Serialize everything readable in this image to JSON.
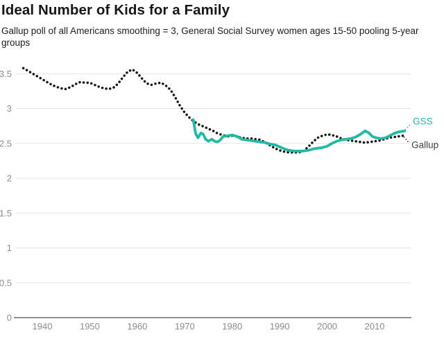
{
  "header": {
    "title": "Ideal Number of Kids for a Family",
    "subtitle": "Gallup poll of all Americans smoothing = 3, General Social Survey women ages 15-50 pooling 5-year groups"
  },
  "colors": {
    "background": "#ffffff",
    "grid": "#e4e4e4",
    "axis": "#6b6b6b",
    "tick_label": "#8c8c8c",
    "title": "#161616",
    "gss": "#1fb9a4",
    "gallup": "#161616",
    "gallup_label": "#3f3f3f"
  },
  "chart_data": {
    "type": "line",
    "title": "Ideal Number of Kids for a Family",
    "subtitle": "Gallup poll of all Americans smoothing = 3, General Social Survey women ages 15-50 pooling 5-year groups",
    "xlabel": "",
    "ylabel": "",
    "x_ticks": [
      "1940",
      "1950",
      "1960",
      "1970",
      "1980",
      "1990",
      "2000",
      "2010"
    ],
    "y_ticks": [
      "0",
      "0.5",
      "1",
      "1.5",
      "2",
      "2.5",
      "3",
      "3.5"
    ],
    "x_range": [
      1934.5,
      2017.5
    ],
    "y_range": [
      0,
      3.5
    ],
    "grid": "horizontal-only",
    "legend": "inline-end-labels",
    "series": [
      {
        "name": "Gallup",
        "label": "Gallup",
        "style": "dotted",
        "color": "#161616",
        "label_color": "#3f3f3f",
        "points": [
          [
            1936,
            3.58
          ],
          [
            1937,
            3.54
          ],
          [
            1938,
            3.5
          ],
          [
            1939,
            3.46
          ],
          [
            1940,
            3.42
          ],
          [
            1941,
            3.38
          ],
          [
            1942,
            3.34
          ],
          [
            1943,
            3.31
          ],
          [
            1944,
            3.29
          ],
          [
            1945,
            3.28
          ],
          [
            1946,
            3.31
          ],
          [
            1947,
            3.35
          ],
          [
            1948,
            3.38
          ],
          [
            1949,
            3.37
          ],
          [
            1950,
            3.37
          ],
          [
            1951,
            3.34
          ],
          [
            1952,
            3.31
          ],
          [
            1953,
            3.29
          ],
          [
            1954,
            3.28
          ],
          [
            1955,
            3.3
          ],
          [
            1956,
            3.36
          ],
          [
            1957,
            3.45
          ],
          [
            1958,
            3.53
          ],
          [
            1959,
            3.56
          ],
          [
            1960,
            3.51
          ],
          [
            1961,
            3.43
          ],
          [
            1962,
            3.36
          ],
          [
            1963,
            3.34
          ],
          [
            1964,
            3.36
          ],
          [
            1965,
            3.37
          ],
          [
            1966,
            3.33
          ],
          [
            1967,
            3.27
          ],
          [
            1968,
            3.16
          ],
          [
            1969,
            3.04
          ],
          [
            1970,
            2.94
          ],
          [
            1971,
            2.87
          ],
          [
            1972,
            2.81
          ],
          [
            1973,
            2.77
          ],
          [
            1974,
            2.74
          ],
          [
            1975,
            2.71
          ],
          [
            1976,
            2.68
          ],
          [
            1977,
            2.64
          ],
          [
            1978,
            2.62
          ],
          [
            1979,
            2.6
          ],
          [
            1980,
            2.61
          ],
          [
            1981,
            2.6
          ],
          [
            1982,
            2.58
          ],
          [
            1983,
            2.57
          ],
          [
            1984,
            2.57
          ],
          [
            1985,
            2.56
          ],
          [
            1986,
            2.55
          ],
          [
            1987,
            2.51
          ],
          [
            1988,
            2.47
          ],
          [
            1989,
            2.43
          ],
          [
            1990,
            2.4
          ],
          [
            1991,
            2.38
          ],
          [
            1992,
            2.37
          ],
          [
            1993,
            2.37
          ],
          [
            1994,
            2.37
          ],
          [
            1995,
            2.39
          ],
          [
            1996,
            2.45
          ],
          [
            1997,
            2.52
          ],
          [
            1998,
            2.58
          ],
          [
            1999,
            2.61
          ],
          [
            2000,
            2.63
          ],
          [
            2001,
            2.62
          ],
          [
            2002,
            2.6
          ],
          [
            2003,
            2.57
          ],
          [
            2004,
            2.55
          ],
          [
            2005,
            2.54
          ],
          [
            2006,
            2.53
          ],
          [
            2007,
            2.52
          ],
          [
            2008,
            2.51
          ],
          [
            2009,
            2.52
          ],
          [
            2010,
            2.53
          ],
          [
            2011,
            2.54
          ],
          [
            2012,
            2.56
          ],
          [
            2013,
            2.58
          ],
          [
            2014,
            2.59
          ],
          [
            2015,
            2.6
          ],
          [
            2016,
            2.61
          ]
        ]
      },
      {
        "name": "GSS",
        "label": "GSS",
        "style": "solid",
        "color": "#1fb9a4",
        "label_color": "#1fb9a4",
        "points": [
          [
            1971.8,
            2.84
          ],
          [
            1972.3,
            2.64
          ],
          [
            1972.8,
            2.58
          ],
          [
            1973.4,
            2.65
          ],
          [
            1973.9,
            2.63
          ],
          [
            1974.4,
            2.56
          ],
          [
            1975.0,
            2.53
          ],
          [
            1975.7,
            2.56
          ],
          [
            1976.3,
            2.53
          ],
          [
            1976.9,
            2.52
          ],
          [
            1977.5,
            2.55
          ],
          [
            1978.1,
            2.6
          ],
          [
            1979,
            2.61
          ],
          [
            1980,
            2.62
          ],
          [
            1981,
            2.6
          ],
          [
            1982,
            2.56
          ],
          [
            1983,
            2.55
          ],
          [
            1984,
            2.54
          ],
          [
            1985,
            2.53
          ],
          [
            1986,
            2.52
          ],
          [
            1987,
            2.51
          ],
          [
            1988,
            2.49
          ],
          [
            1989,
            2.48
          ],
          [
            1990,
            2.45
          ],
          [
            1991,
            2.42
          ],
          [
            1992,
            2.4
          ],
          [
            1993,
            2.39
          ],
          [
            1994,
            2.39
          ],
          [
            1995,
            2.39
          ],
          [
            1996,
            2.4
          ],
          [
            1997,
            2.42
          ],
          [
            1998,
            2.43
          ],
          [
            1999,
            2.44
          ],
          [
            2000,
            2.46
          ],
          [
            2001,
            2.5
          ],
          [
            2002,
            2.53
          ],
          [
            2003,
            2.55
          ],
          [
            2004,
            2.56
          ],
          [
            2005,
            2.57
          ],
          [
            2006,
            2.59
          ],
          [
            2007,
            2.63
          ],
          [
            2008,
            2.68
          ],
          [
            2008.8,
            2.65
          ],
          [
            2009.5,
            2.6
          ],
          [
            2010.3,
            2.58
          ],
          [
            2011.3,
            2.57
          ],
          [
            2012.3,
            2.58
          ],
          [
            2013.2,
            2.61
          ],
          [
            2014,
            2.64
          ],
          [
            2014.8,
            2.66
          ],
          [
            2015.5,
            2.67
          ],
          [
            2016.3,
            2.68
          ]
        ]
      }
    ]
  }
}
